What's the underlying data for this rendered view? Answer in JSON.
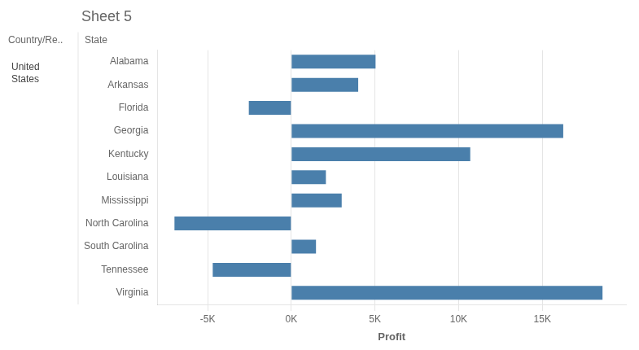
{
  "chart_data": {
    "type": "bar",
    "orientation": "horizontal",
    "title": "Sheet 5",
    "xlabel": "Profit",
    "ylabel": "State",
    "categories": [
      "Alabama",
      "Arkansas",
      "Florida",
      "Georgia",
      "Kentucky",
      "Louisiana",
      "Mississippi",
      "North Carolina",
      "South Carolina",
      "Tennessee",
      "Virginia"
    ],
    "values": [
      5036,
      3999,
      -2538,
      16251,
      10694,
      2068,
      3012,
      -6981,
      1476,
      -4694,
      18598
    ],
    "color": "#4a7fab",
    "xlim": [
      -8000,
      20000
    ],
    "xticks": [
      {
        "value": -5000,
        "label": "-5K"
      },
      {
        "value": 0,
        "label": "0K"
      },
      {
        "value": 5000,
        "label": "5K"
      },
      {
        "value": 10000,
        "label": "10K"
      },
      {
        "value": 15000,
        "label": "15K"
      }
    ],
    "grid": true,
    "annotations": [
      "Country/Re..",
      "United\nStates"
    ]
  }
}
